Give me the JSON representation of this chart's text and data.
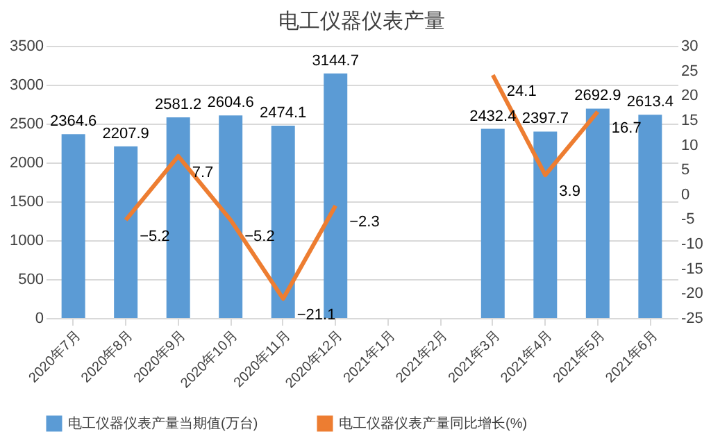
{
  "chart_data": {
    "type": "bar",
    "title": "电工仪器仪表产量",
    "categories": [
      "2020年7月",
      "2020年8月",
      "2020年9月",
      "2020年10月",
      "2020年11月",
      "2020年12月",
      "2021年1月",
      "2021年2月",
      "2021年3月",
      "2021年4月",
      "2021年5月",
      "2021年6月"
    ],
    "series": [
      {
        "name": "电工仪器仪表产量当期值(万台)",
        "type": "bar",
        "color": "#5b9bd5",
        "values": [
          2364.6,
          2207.9,
          2581.2,
          2604.6,
          2474.1,
          3144.7,
          null,
          null,
          2432.4,
          2397.7,
          2692.9,
          2613.4
        ]
      },
      {
        "name": "电工仪器仪表产量同比增长(%)",
        "type": "line",
        "axis": "y2",
        "color": "#ed7d31",
        "values": [
          null,
          -5.2,
          7.7,
          -5.2,
          -21.1,
          -2.3,
          null,
          null,
          24.1,
          3.9,
          16.7,
          null
        ]
      }
    ],
    "ylim": [
      0,
      3500
    ],
    "yticks": [
      0,
      500,
      1000,
      1500,
      2000,
      2500,
      3000,
      3500
    ],
    "y2lim": [
      -25,
      30
    ],
    "y2ticks": [
      -25,
      -20,
      -15,
      -10,
      -5,
      0,
      5,
      10,
      15,
      20,
      25,
      30
    ],
    "data_labels": true,
    "grid": "y",
    "legend": "bottom"
  }
}
